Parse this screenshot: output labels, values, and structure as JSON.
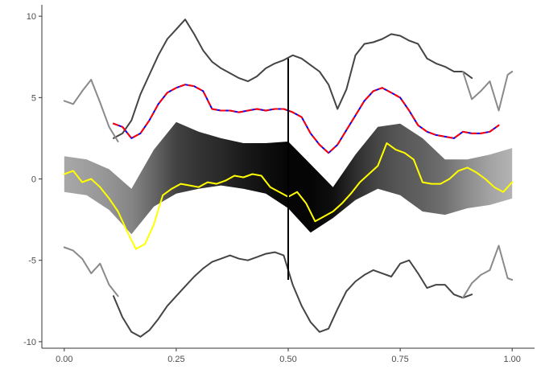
{
  "chart_data": {
    "type": "line",
    "title": "",
    "xlabel": "",
    "ylabel": "",
    "xlim": [
      -0.05,
      1.05
    ],
    "ylim": [
      -10.4,
      10.7
    ],
    "x_ticks": [
      {
        "value": 0.0,
        "label": "0.00"
      },
      {
        "value": 0.25,
        "label": "0.25"
      },
      {
        "value": 0.5,
        "label": "0.50"
      },
      {
        "value": 0.75,
        "label": "0.75"
      },
      {
        "value": 1.0,
        "label": "1.00"
      }
    ],
    "y_ticks": [
      {
        "value": -10,
        "label": "-10"
      },
      {
        "value": -5,
        "label": "-5"
      },
      {
        "value": 0,
        "label": "0"
      },
      {
        "value": 5,
        "label": "5"
      },
      {
        "value": 10,
        "label": "10"
      }
    ],
    "grid": false,
    "legend": "none",
    "vertical_marker": {
      "x": 0.5,
      "y_from": -6.2,
      "y_to": 7.4,
      "color": "#000000"
    },
    "band": {
      "x": [
        0.0,
        0.05,
        0.1,
        0.15,
        0.2,
        0.25,
        0.3,
        0.35,
        0.4,
        0.45,
        0.5,
        0.55,
        0.6,
        0.65,
        0.7,
        0.75,
        0.8,
        0.85,
        0.9,
        0.95,
        1.0
      ],
      "lower": [
        -0.8,
        -1.0,
        -1.9,
        -3.4,
        -1.7,
        -0.9,
        -0.6,
        -0.4,
        -0.6,
        -0.9,
        -1.8,
        -3.3,
        -2.4,
        -1.3,
        -0.6,
        -1.0,
        -2.0,
        -2.2,
        -1.8,
        -1.6,
        -1.2
      ],
      "upper": [
        1.4,
        1.2,
        0.6,
        -0.6,
        1.8,
        3.5,
        2.9,
        2.5,
        2.2,
        2.2,
        2.3,
        0.9,
        -0.5,
        1.5,
        3.2,
        3.4,
        2.5,
        1.2,
        1.2,
        1.5,
        1.9
      ],
      "fill_gray_levels": [
        0.66,
        0.62,
        0.58,
        0.52,
        0.4,
        0.26,
        0.2,
        0.16,
        0.1,
        0.06,
        0.02,
        0.02,
        0.06,
        0.18,
        0.28,
        0.34,
        0.38,
        0.44,
        0.55,
        0.64,
        0.7
      ]
    },
    "series": [
      {
        "color": "#444444",
        "width": 2,
        "dash": "",
        "x": [
          0.11,
          0.13,
          0.15,
          0.17,
          0.19,
          0.21,
          0.23,
          0.25,
          0.27,
          0.29,
          0.31,
          0.33,
          0.35,
          0.37,
          0.39,
          0.41,
          0.43,
          0.45,
          0.47,
          0.49,
          0.51,
          0.53,
          0.55,
          0.57,
          0.59,
          0.61,
          0.63,
          0.65,
          0.67,
          0.69,
          0.71,
          0.73,
          0.75,
          0.77,
          0.79,
          0.81,
          0.83,
          0.85,
          0.87,
          0.89,
          0.91
        ],
        "values": [
          2.5,
          2.8,
          3.6,
          5.2,
          6.4,
          7.6,
          8.6,
          9.2,
          9.8,
          8.9,
          7.9,
          7.2,
          6.8,
          6.5,
          6.2,
          6.0,
          6.3,
          6.8,
          7.1,
          7.3,
          7.6,
          7.4,
          7.0,
          6.6,
          5.8,
          4.3,
          5.5,
          7.6,
          8.3,
          8.4,
          8.6,
          8.9,
          8.8,
          8.5,
          8.3,
          7.4,
          7.1,
          6.9,
          6.6,
          6.6,
          6.2
        ]
      },
      {
        "color": "#8a8a8a",
        "width": 2,
        "dash": "",
        "x": [
          0.0,
          0.02,
          0.04,
          0.06,
          0.08,
          0.1,
          0.12
        ],
        "values": [
          4.8,
          4.6,
          5.4,
          6.1,
          4.7,
          3.2,
          2.3
        ]
      },
      {
        "color": "#8a8a8a",
        "width": 2,
        "dash": "",
        "x": [
          0.89,
          0.91,
          0.93,
          0.95,
          0.97,
          0.99,
          1.0
        ],
        "values": [
          6.6,
          4.9,
          5.4,
          6.0,
          4.2,
          6.4,
          6.6
        ]
      },
      {
        "color": "#444444",
        "width": 2,
        "dash": "",
        "x": [
          0.11,
          0.13,
          0.15,
          0.17,
          0.19,
          0.21,
          0.23,
          0.25,
          0.27,
          0.29,
          0.31,
          0.33,
          0.35,
          0.37,
          0.39,
          0.41,
          0.43,
          0.45,
          0.47,
          0.49,
          0.51,
          0.53,
          0.55,
          0.57,
          0.59,
          0.61,
          0.63,
          0.65,
          0.67,
          0.69,
          0.71,
          0.73,
          0.75,
          0.77,
          0.79,
          0.81,
          0.83,
          0.85,
          0.87,
          0.89,
          0.91
        ],
        "values": [
          -7.2,
          -8.5,
          -9.4,
          -9.7,
          -9.3,
          -8.6,
          -7.8,
          -7.2,
          -6.6,
          -6.0,
          -5.5,
          -5.1,
          -4.9,
          -4.7,
          -4.9,
          -5.0,
          -4.8,
          -4.6,
          -4.5,
          -4.7,
          -6.5,
          -7.8,
          -8.8,
          -9.4,
          -9.2,
          -8.0,
          -6.9,
          -6.3,
          -5.9,
          -5.6,
          -5.8,
          -6.0,
          -5.2,
          -5.0,
          -5.8,
          -6.7,
          -6.5,
          -6.5,
          -7.1,
          -7.3,
          -7.1
        ]
      },
      {
        "color": "#8a8a8a",
        "width": 2,
        "dash": "",
        "x": [
          0.0,
          0.02,
          0.04,
          0.06,
          0.08,
          0.1,
          0.12
        ],
        "values": [
          -4.2,
          -4.4,
          -4.9,
          -5.8,
          -5.2,
          -6.5,
          -7.2
        ]
      },
      {
        "color": "#8a8a8a",
        "width": 2,
        "dash": "",
        "x": [
          0.89,
          0.91,
          0.93,
          0.95,
          0.97,
          0.99,
          1.0
        ],
        "values": [
          -7.3,
          -6.4,
          -5.9,
          -5.6,
          -4.1,
          -6.1,
          -6.2
        ]
      },
      {
        "color": "#0000ff",
        "width": 2,
        "dash": "",
        "x": [
          0.11,
          0.13,
          0.15,
          0.17,
          0.19,
          0.21,
          0.23,
          0.25,
          0.27,
          0.29,
          0.31,
          0.33,
          0.35,
          0.37,
          0.39,
          0.41,
          0.43,
          0.45,
          0.47,
          0.49,
          0.51,
          0.53,
          0.55,
          0.57,
          0.59,
          0.61,
          0.63,
          0.65,
          0.67,
          0.69,
          0.71,
          0.73,
          0.75,
          0.77,
          0.79,
          0.81,
          0.83,
          0.85,
          0.87,
          0.89,
          0.91,
          0.93,
          0.95,
          0.97
        ],
        "values": [
          3.4,
          3.2,
          2.5,
          2.8,
          3.6,
          4.6,
          5.3,
          5.6,
          5.8,
          5.7,
          5.4,
          4.3,
          4.2,
          4.2,
          4.1,
          4.2,
          4.3,
          4.2,
          4.3,
          4.3,
          4.1,
          3.8,
          2.8,
          2.1,
          1.6,
          2.1,
          3.0,
          3.9,
          4.8,
          5.4,
          5.6,
          5.3,
          5.0,
          4.2,
          3.3,
          2.9,
          2.7,
          2.6,
          2.5,
          2.9,
          2.8,
          2.8,
          2.9,
          3.3
        ]
      },
      {
        "color": "#ff0000",
        "width": 2,
        "dash": "6 5",
        "x": [
          0.11,
          0.13,
          0.15,
          0.17,
          0.19,
          0.21,
          0.23,
          0.25,
          0.27,
          0.29,
          0.31,
          0.33,
          0.35,
          0.37,
          0.39,
          0.41,
          0.43,
          0.45,
          0.47,
          0.49,
          0.51,
          0.53,
          0.55,
          0.57,
          0.59,
          0.61,
          0.63,
          0.65,
          0.67,
          0.69,
          0.71,
          0.73,
          0.75,
          0.77,
          0.79,
          0.81,
          0.83,
          0.85,
          0.87,
          0.89,
          0.91,
          0.93,
          0.95,
          0.97
        ],
        "values": [
          3.4,
          3.2,
          2.5,
          2.8,
          3.6,
          4.6,
          5.3,
          5.6,
          5.8,
          5.7,
          5.4,
          4.3,
          4.2,
          4.2,
          4.1,
          4.2,
          4.3,
          4.2,
          4.3,
          4.3,
          4.1,
          3.8,
          2.8,
          2.1,
          1.6,
          2.1,
          3.0,
          3.9,
          4.8,
          5.4,
          5.6,
          5.3,
          5.0,
          4.2,
          3.3,
          2.9,
          2.7,
          2.6,
          2.5,
          2.9,
          2.8,
          2.8,
          2.9,
          3.3
        ]
      },
      {
        "color": "#ffff00",
        "width": 2,
        "dash": "",
        "x": [
          0.0,
          0.02,
          0.04,
          0.06,
          0.08,
          0.1,
          0.12,
          0.14,
          0.16,
          0.18,
          0.2,
          0.22,
          0.24,
          0.26,
          0.28,
          0.3,
          0.32,
          0.34,
          0.36,
          0.38,
          0.4,
          0.42,
          0.44,
          0.46,
          0.48,
          0.5,
          0.52,
          0.54,
          0.56,
          0.58,
          0.6,
          0.62,
          0.64,
          0.66,
          0.68,
          0.7,
          0.72,
          0.74,
          0.76,
          0.78,
          0.8,
          0.82,
          0.84,
          0.86,
          0.88,
          0.9,
          0.92,
          0.94,
          0.96,
          0.98,
          1.0
        ],
        "values": [
          0.3,
          0.5,
          -0.2,
          0.0,
          -0.5,
          -1.2,
          -2.0,
          -3.2,
          -4.3,
          -4.0,
          -2.8,
          -1.0,
          -0.6,
          -0.3,
          -0.4,
          -0.5,
          -0.2,
          -0.3,
          -0.1,
          0.2,
          0.1,
          0.3,
          0.2,
          -0.5,
          -0.8,
          -1.1,
          -0.8,
          -1.5,
          -2.6,
          -2.3,
          -2.0,
          -1.5,
          -0.9,
          -0.2,
          0.3,
          0.8,
          2.2,
          1.8,
          1.6,
          1.2,
          -0.2,
          -0.3,
          -0.3,
          0.0,
          0.5,
          0.7,
          0.4,
          0.0,
          -0.5,
          -0.8,
          -0.2
        ]
      }
    ]
  }
}
